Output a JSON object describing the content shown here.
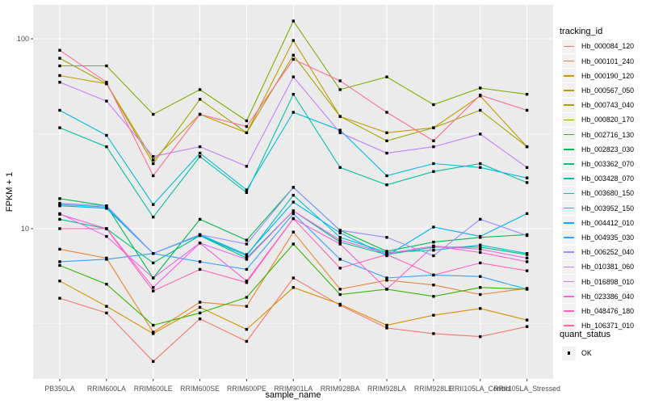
{
  "chart_data": {
    "type": "line",
    "title": "",
    "xlabel": "sample_name",
    "ylabel": "FPKM + 1",
    "y_scale": "log10",
    "ylim": [
      1.6,
      151
    ],
    "y_tick_labels": [
      "10",
      "100"
    ],
    "y_tick_values": [
      10,
      100
    ],
    "y_minor_values": [
      3.162,
      31.623
    ],
    "grid": "on",
    "panel_bg": "#EBEBEB",
    "grid_color": "#FFFFFF",
    "tick_label_color": "#4D4D4D",
    "marker": "square",
    "marker_color": "#000000",
    "legend_position": "right",
    "legend_title": "tracking_id",
    "legend_key_bg": "#F2F2F2",
    "categories": [
      "PB350LA",
      "RRIM600LA",
      "RRIM600LE",
      "RRIM600SE",
      "RRIM600PE",
      "RRIM901LA",
      "RRIM928BA",
      "RRIM928LA",
      "RRIM928LE",
      "RRII105LA_Control",
      "RRII105LA_Stressed"
    ],
    "series": [
      {
        "name": "Hb_000084_120",
        "color": "#F8766D",
        "values": [
          4.3,
          3.6,
          2.0,
          3.35,
          2.55,
          5.5,
          3.95,
          3.0,
          2.8,
          2.7,
          3.05
        ]
      },
      {
        "name": "Hb_000101_240",
        "color": "#EA8331",
        "values": [
          7.8,
          7.0,
          2.85,
          4.1,
          3.9,
          9.6,
          4.8,
          5.35,
          5.05,
          4.5,
          4.85
        ]
      },
      {
        "name": "Hb_000190_120",
        "color": "#D89000",
        "values": [
          5.3,
          3.9,
          2.8,
          3.85,
          2.95,
          4.9,
          4.0,
          3.1,
          3.5,
          3.8,
          3.3
        ]
      },
      {
        "name": "Hb_000567_050",
        "color": "#C09B00",
        "values": [
          64,
          58,
          23,
          40,
          32,
          98,
          39,
          32,
          34,
          50,
          27
        ]
      },
      {
        "name": "Hb_000743_040",
        "color": "#A3A500",
        "values": [
          79,
          58,
          22,
          48,
          32,
          82,
          39,
          29,
          34,
          42,
          27
        ]
      },
      {
        "name": "Hb_000820_170",
        "color": "#7CAE00",
        "values": [
          72,
          72,
          40,
          54,
          37,
          124,
          54,
          63,
          45,
          55,
          51
        ]
      },
      {
        "name": "Hb_002716_130",
        "color": "#39B600",
        "values": [
          6.4,
          5.1,
          3.1,
          3.6,
          4.35,
          8.3,
          4.5,
          4.8,
          4.4,
          4.9,
          4.8
        ]
      },
      {
        "name": "Hb_002823_030",
        "color": "#00BB4E",
        "values": [
          14.4,
          13.2,
          5.5,
          11.2,
          8.7,
          16.5,
          9.8,
          7.6,
          8.5,
          9.0,
          9.3
        ]
      },
      {
        "name": "Hb_003362_070",
        "color": "#00BF7D",
        "values": [
          11.2,
          10.0,
          6.6,
          9.2,
          7.0,
          12.4,
          8.5,
          7.3,
          8.0,
          8.0,
          7.3
        ]
      },
      {
        "name": "Hb_003428_070",
        "color": "#00C1A3",
        "values": [
          34,
          27,
          11.5,
          24,
          15.5,
          51,
          21,
          17,
          20,
          22,
          17.5
        ]
      },
      {
        "name": "Hb_003680_150",
        "color": "#00BFC4",
        "values": [
          13.4,
          13.0,
          7.4,
          9.2,
          7.2,
          15.0,
          9.0,
          7.5,
          7.7,
          8.2,
          7.4
        ]
      },
      {
        "name": "Hb_003952_150",
        "color": "#00BAE0",
        "values": [
          42,
          31,
          13.4,
          25,
          16,
          41,
          33,
          19,
          22,
          21,
          18.5
        ]
      },
      {
        "name": "Hb_004412_010",
        "color": "#00B0F6",
        "values": [
          13.2,
          12.8,
          7.4,
          9.3,
          7.3,
          13.8,
          9.5,
          7.2,
          10.2,
          9.1,
          12.0
        ]
      },
      {
        "name": "Hb_004935_030",
        "color": "#35A2FF",
        "values": [
          6.7,
          6.9,
          7.4,
          6.7,
          6.1,
          12.0,
          6.9,
          5.5,
          5.7,
          5.6,
          4.8
        ]
      },
      {
        "name": "Hb_006252_040",
        "color": "#9590FF",
        "values": [
          13.6,
          13.2,
          7.4,
          9.3,
          8.3,
          16.5,
          9.8,
          9.0,
          7.2,
          11.2,
          9.2
        ]
      },
      {
        "name": "Hb_010381_060",
        "color": "#C77CFF",
        "values": [
          59,
          47,
          24,
          27,
          21.3,
          63,
          32,
          25,
          27,
          31.5,
          21
        ]
      },
      {
        "name": "Hb_016898_010",
        "color": "#E76BF3",
        "values": [
          12.0,
          9.1,
          5.5,
          8.4,
          6.9,
          12.4,
          8.7,
          7.4,
          8.1,
          7.8,
          7.0
        ]
      },
      {
        "name": "Hb_023386_040",
        "color": "#FA62DB",
        "values": [
          11.9,
          10.0,
          4.9,
          8.4,
          5.3,
          11.3,
          8.3,
          4.8,
          8.1,
          7.5,
          6.7
        ]
      },
      {
        "name": "Hb_048476_180",
        "color": "#FF62BC",
        "values": [
          10.0,
          10.0,
          4.7,
          6.1,
          5.2,
          11.3,
          6.2,
          7.3,
          5.7,
          6.6,
          6.0
        ]
      },
      {
        "name": "Hb_106371_010",
        "color": "#FF6A98",
        "values": [
          87,
          59,
          19,
          40,
          34.5,
          78,
          60,
          41,
          29,
          50.5,
          42
        ]
      }
    ],
    "quant_legend": {
      "title": "quant_status",
      "items": [
        {
          "label": "OK",
          "marker": "black-square"
        }
      ]
    }
  }
}
